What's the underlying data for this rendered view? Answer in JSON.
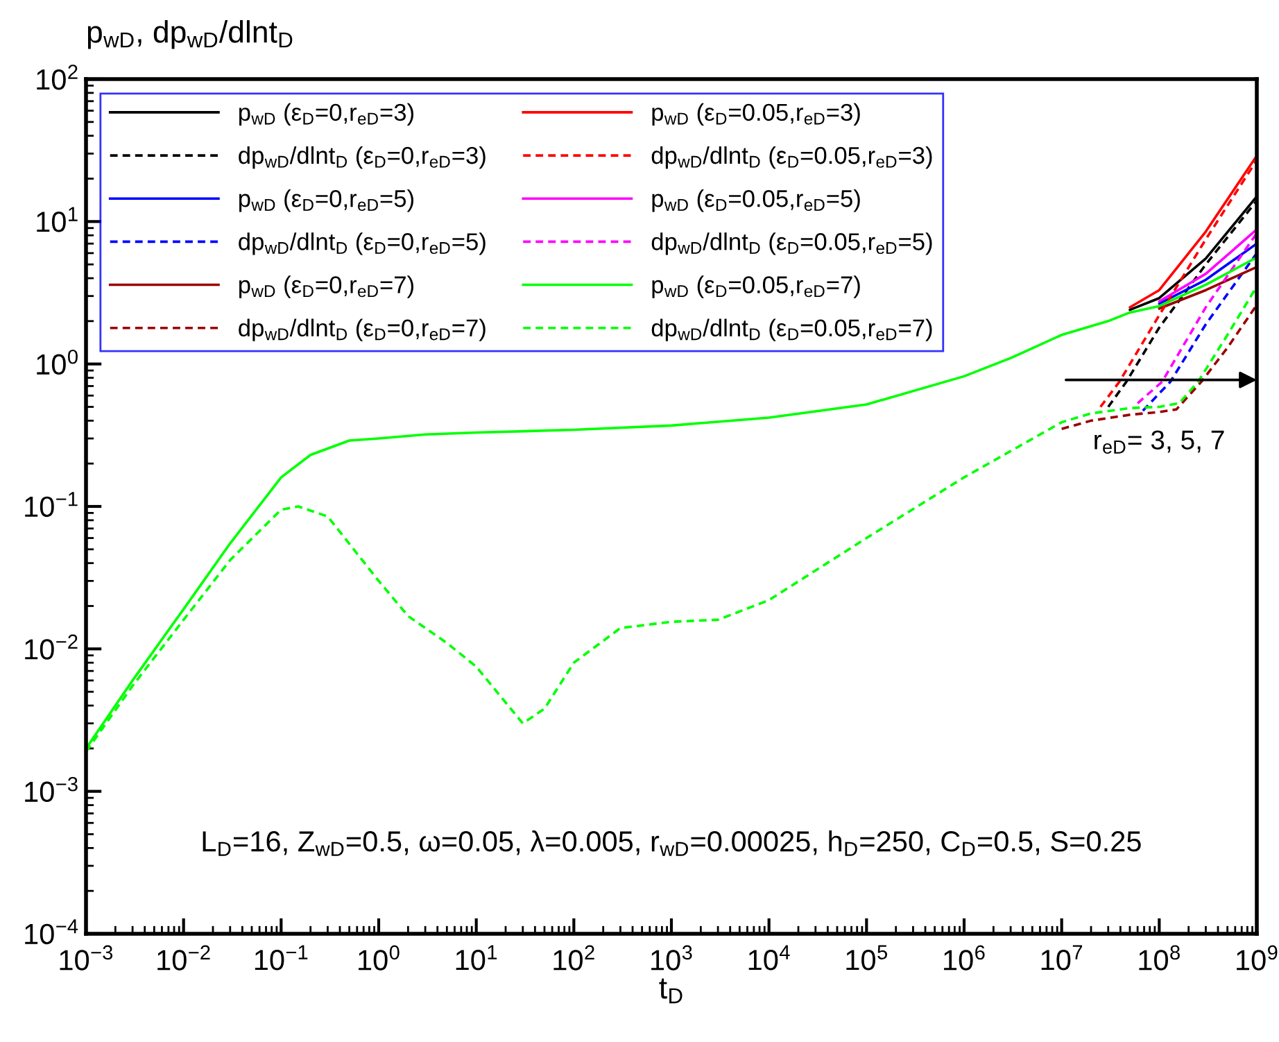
{
  "chart_data": {
    "type": "line",
    "ylabel": "p$_{wD}$, dp$_{wD}$/dlnt$_{D}$",
    "xlabel": "t$_{D}$",
    "log": "xy",
    "grid": false,
    "legend": "top left",
    "xlim": [
      0.001,
      1000000000
    ],
    "ylim": [
      0.0001,
      100
    ],
    "xticks": [
      {
        "value": 0.001,
        "label": "10$^{−3}$"
      },
      {
        "value": 0.01,
        "label": "10$^{−2}$"
      },
      {
        "value": 0.1,
        "label": "10$^{−1}$"
      },
      {
        "value": 1,
        "label": "10$^{0}$"
      },
      {
        "value": 10,
        "label": "10$^{1}$"
      },
      {
        "value": 100,
        "label": "10$^{2}$"
      },
      {
        "value": 1000,
        "label": "10$^{3}$"
      },
      {
        "value": 10000,
        "label": "10$^{4}$"
      },
      {
        "value": 100000,
        "label": "10$^{5}$"
      },
      {
        "value": 1000000,
        "label": "10$^{6}$"
      },
      {
        "value": 10000000,
        "label": "10$^{7}$"
      },
      {
        "value": 100000000,
        "label": "10$^{8}$"
      },
      {
        "value": 1000000000,
        "label": "10$^{9}$"
      }
    ],
    "yticks": [
      {
        "value": 0.0001,
        "label": "10$^{−4}$"
      },
      {
        "value": 0.001,
        "label": "10$^{−3}$"
      },
      {
        "value": 0.01,
        "label": "10$^{−2}$"
      },
      {
        "value": 0.1,
        "label": "10$^{−1}$"
      },
      {
        "value": 1,
        "label": "10$^{0}$"
      },
      {
        "value": 10,
        "label": "10$^{1}$"
      },
      {
        "value": 100,
        "label": "10$^{2}$"
      }
    ],
    "annotations": [
      "r$_{eD}$= 3, 5, 7",
      "L$_{D}$=16, Z$_{wD}$=0.5, ω=0.05, λ=0.005, r$_{wD}$=0.00025, h$_{D}$=250, C$_{D}$=0.5, S=0.25"
    ],
    "series": [
      {
        "name": "p$_{wD}$ (ε$_{D}$=0,r$_{eD}$=3)",
        "color": "#000000",
        "line_style": "solid",
        "x": [
          50000000,
          100000000,
          300000000,
          1000000000
        ],
        "values": [
          2.4,
          2.9,
          5.5,
          15
        ]
      },
      {
        "name": "dp$_{wD}$/dlnt$_{D}$ (ε$_{D}$=0,r$_{eD}$=3)",
        "color": "#000000",
        "line_style": "dashed",
        "x": [
          30000000,
          46000000,
          100000000,
          300000000,
          1000000000
        ],
        "values": [
          0.5,
          0.75,
          1.8,
          5,
          14
        ]
      },
      {
        "name": "p$_{wD}$ (ε$_{D}$=0,r$_{eD}$=5)",
        "color": "#0000ff",
        "line_style": "solid",
        "x": [
          100000000,
          300000000,
          1000000000
        ],
        "values": [
          2.65,
          3.9,
          7
        ]
      },
      {
        "name": "dp$_{wD}$/dlnt$_{D}$ (ε$_{D}$=0,r$_{eD}$=5)",
        "color": "#0000ff",
        "line_style": "dashed",
        "x": [
          68000000,
          130000000,
          300000000,
          1000000000
        ],
        "values": [
          0.47,
          0.75,
          1.9,
          6
        ]
      },
      {
        "name": "p$_{wD}$ (ε$_{D}$=0,r$_{eD}$=7)",
        "color": "#990000",
        "line_style": "solid",
        "x": [
          100000000,
          300000000,
          1000000000
        ],
        "values": [
          2.45,
          3.3,
          4.8
        ]
      },
      {
        "name": "dp$_{wD}$/dlnt$_{D}$ (ε$_{D}$=0,r$_{eD}$=7)",
        "color": "#990000",
        "line_style": "dashed",
        "x": [
          10000000,
          20000000,
          50000000,
          100000000,
          150000000,
          270000000,
          500000000,
          1000000000
        ],
        "values": [
          0.35,
          0.4,
          0.44,
          0.46,
          0.48,
          0.75,
          1.3,
          2.6
        ]
      },
      {
        "name": "p$_{wD}$ (ε$_{D}$=0.05,r$_{eD}$=3)",
        "color": "#ff0000",
        "line_style": "solid",
        "x": [
          50000000,
          100000000,
          300000000,
          1000000000
        ],
        "values": [
          2.5,
          3.3,
          8.5,
          29
        ]
      },
      {
        "name": "dp$_{wD}$/dlnt$_{D}$ (ε$_{D}$=0.05,r$_{eD}$=3)",
        "color": "#ff0000",
        "line_style": "dashed",
        "x": [
          25000000,
          39000000,
          100000000,
          300000000,
          1000000000
        ],
        "values": [
          0.5,
          0.75,
          2.2,
          7.5,
          27
        ]
      },
      {
        "name": "p$_{wD}$ (ε$_{D}$=0.05,r$_{eD}$=5)",
        "color": "#ff00ff",
        "line_style": "solid",
        "x": [
          100000000,
          300000000,
          1000000000
        ],
        "values": [
          2.75,
          4.3,
          8.8
        ]
      },
      {
        "name": "dp$_{wD}$/dlnt$_{D}$ (ε$_{D}$=0.05,r$_{eD}$=5)",
        "color": "#ff00ff",
        "line_style": "dashed",
        "x": [
          60000000,
          107000000,
          300000000,
          1000000000
        ],
        "values": [
          0.53,
          0.75,
          2.5,
          8.3
        ]
      },
      {
        "name": "p$_{wD}$ (ε$_{D}$=0.05,r$_{eD}$=7)",
        "color": "#00ff00",
        "line_style": "solid",
        "x": [
          0.001,
          0.003,
          0.01,
          0.03,
          0.1,
          0.2,
          0.5,
          1,
          3,
          10,
          100,
          1000,
          10000,
          100000,
          1000000,
          3000000,
          10000000,
          30000000,
          50000000,
          100000000,
          300000000,
          1000000000
        ],
        "values": [
          0.002,
          0.006,
          0.019,
          0.055,
          0.16,
          0.23,
          0.29,
          0.3,
          0.32,
          0.33,
          0.345,
          0.37,
          0.42,
          0.52,
          0.82,
          1.1,
          1.6,
          2.0,
          2.3,
          2.55,
          3.6,
          5.6
        ]
      },
      {
        "name": "dp$_{wD}$/dlnt$_{D}$ (ε$_{D}$=0.05,r$_{eD}$=7)",
        "color": "#00ff00",
        "line_style": "dashed",
        "x": [
          0.001,
          0.003,
          0.01,
          0.03,
          0.1,
          0.15,
          0.3,
          1,
          2,
          5,
          10,
          20,
          30,
          50,
          100,
          300,
          1000,
          3000,
          10000,
          100000,
          1000000,
          10000000,
          20000000,
          50000000,
          100000000,
          160000000,
          250000000,
          500000000,
          1000000000
        ],
        "values": [
          0.0019,
          0.0055,
          0.016,
          0.042,
          0.095,
          0.1,
          0.085,
          0.03,
          0.017,
          0.011,
          0.0075,
          0.0042,
          0.003,
          0.0038,
          0.008,
          0.014,
          0.0155,
          0.016,
          0.022,
          0.06,
          0.16,
          0.39,
          0.45,
          0.49,
          0.5,
          0.53,
          0.75,
          1.6,
          3.5
        ]
      }
    ]
  }
}
